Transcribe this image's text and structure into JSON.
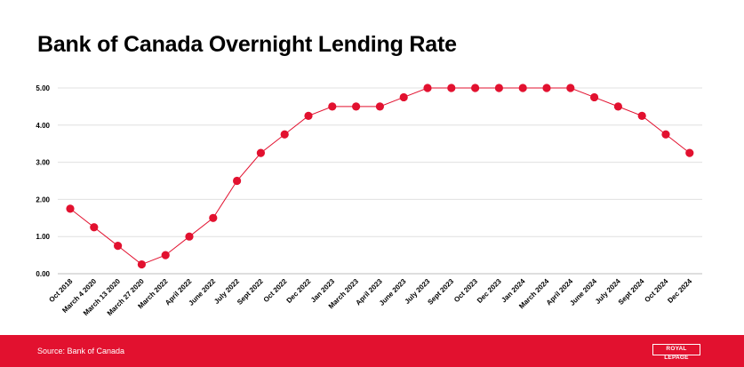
{
  "page": {
    "title": "Bank of Canada Overnight Lending Rate",
    "source": "Source: Bank of Canada",
    "logo_text": "ROYAL LEPAGE"
  },
  "colors": {
    "series": "#e2112f",
    "footer": "#e2112f",
    "grid": "#e0e0e0"
  },
  "chart_data": {
    "type": "line",
    "title": "Bank of Canada Overnight Lending Rate",
    "xlabel": "",
    "ylabel": "",
    "ylim": [
      0,
      5
    ],
    "yticks": [
      "0.00",
      "1.00",
      "2.00",
      "3.00",
      "4.00",
      "5.00"
    ],
    "grid": true,
    "legend": "none",
    "categories": [
      "Oct 2018",
      "March 4 2020",
      "March 13 2020",
      "March 27 2020",
      "March 2022",
      "April 2022",
      "June 2022",
      "July 2022",
      "Sept 2022",
      "Oct 2022",
      "Dec 2022",
      "Jan 2023",
      "March 2023",
      "April 2023",
      "June 2023",
      "July 2023",
      "Sept 2023",
      "Oct 2023",
      "Dec 2023",
      "Jan 2024",
      "March 2024",
      "April 2024",
      "June 2024",
      "July 2024",
      "Sept 2024",
      "Oct 2024",
      "Dec 2024"
    ],
    "series": [
      {
        "values": [
          1.75,
          1.25,
          0.75,
          0.25,
          0.5,
          1.0,
          1.5,
          2.5,
          3.25,
          3.75,
          4.25,
          4.5,
          4.5,
          4.5,
          4.75,
          5.0,
          5.0,
          5.0,
          5.0,
          5.0,
          5.0,
          5.0,
          4.75,
          4.5,
          4.25,
          3.75,
          3.25
        ]
      }
    ]
  }
}
